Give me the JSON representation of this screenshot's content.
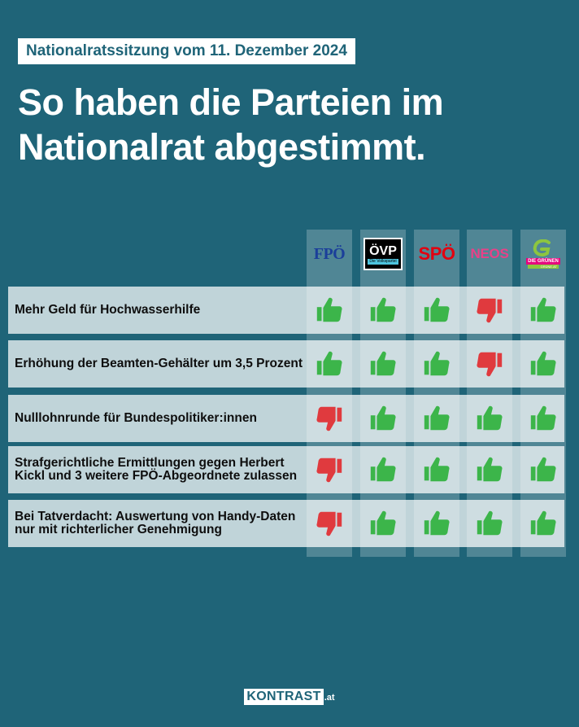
{
  "header": {
    "subtitle": "Nationalratssitzung vom 11. Dezember 2024",
    "title_line1": "So haben die Parteien im",
    "title_line2": "Nationalrat abgestimmt."
  },
  "parties": [
    {
      "key": "fpo",
      "logo_text": "FPÖ"
    },
    {
      "key": "ovp",
      "logo_text": "ÖVP",
      "logo_sub": "Die Volkspartei"
    },
    {
      "key": "spo",
      "logo_text": "SPÖ"
    },
    {
      "key": "neos",
      "logo_text": "NEOS"
    },
    {
      "key": "gruene",
      "logo_text": "DIE GRÜNEN",
      "logo_sub": "GRÜNE.AT"
    }
  ],
  "votes": [
    {
      "label": "Mehr Geld für Hochwasserhilfe",
      "results": [
        "yes",
        "yes",
        "yes",
        "no",
        "yes"
      ]
    },
    {
      "label": "Erhöhung der Beamten-Gehälter um 3,5 Prozent",
      "results": [
        "yes",
        "yes",
        "yes",
        "no",
        "yes"
      ]
    },
    {
      "label": "Nulllohnrunde für Bundespolitiker:innen",
      "results": [
        "no",
        "yes",
        "yes",
        "yes",
        "yes"
      ]
    },
    {
      "label": "Strafgerichtliche Ermittlungen gegen Herbert Kickl und 3 weitere FPÖ-Abgeordnete zulassen",
      "results": [
        "no",
        "yes",
        "yes",
        "yes",
        "yes"
      ]
    },
    {
      "label": "Bei Tatverdacht: Auswertung von Handy-Daten nur mit richterlicher Genehmigung",
      "results": [
        "no",
        "yes",
        "yes",
        "yes",
        "yes"
      ]
    }
  ],
  "colors": {
    "yes": "#3cb54a",
    "no": "#e03a3e",
    "background": "#1f6478"
  },
  "icons": {
    "yes": "thumbs-up-icon",
    "no": "thumbs-down-icon"
  },
  "footer": {
    "brand": "KONTRAST",
    "domain": ".at"
  }
}
